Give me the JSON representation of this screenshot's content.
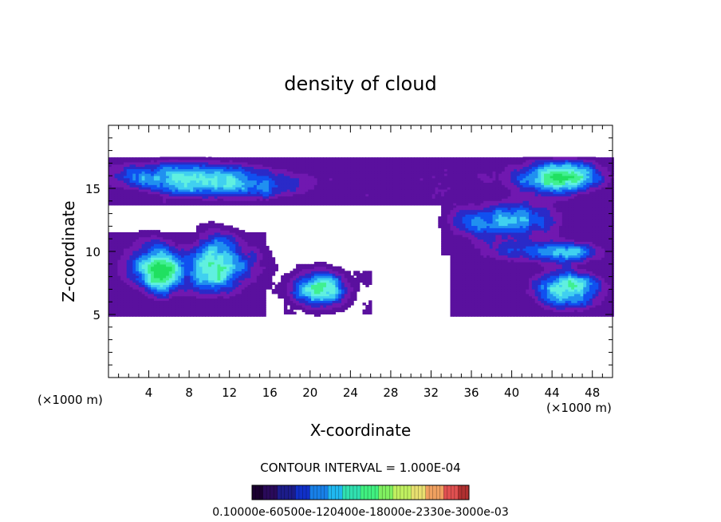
{
  "chart_data": {
    "type": "heatmap",
    "title": "density of cloud",
    "xlabel": "X-coordinate",
    "ylabel": "Z-coordinate",
    "x_unit": "(×1000 m)",
    "x_unit_right": "(×1000 m)",
    "xlim": [
      0,
      50
    ],
    "ylim": [
      0,
      20
    ],
    "x_ticks": [
      4,
      8,
      12,
      16,
      20,
      24,
      28,
      32,
      36,
      40,
      44,
      48
    ],
    "y_ticks": [
      5,
      10,
      15
    ],
    "contour_interval_text": "CONTOUR INTERVAL = 1.000E-04",
    "colorbar": {
      "labels_text": "0.10000e-60500e-120400e-18000e-2330e-3000e-03",
      "colors": [
        "#1a0030",
        "#2a0a5a",
        "#1c1c8a",
        "#1030c8",
        "#1880e8",
        "#20b8f0",
        "#30e0b0",
        "#40f080",
        "#80f060",
        "#c0f060",
        "#e8e070",
        "#f0a060",
        "#e05050",
        "#b03030"
      ]
    },
    "blobs": [
      {
        "x": 7.0,
        "z": 16.0,
        "rx": 8.0,
        "rz": 1.3,
        "a": 0.6
      },
      {
        "x": 13.0,
        "z": 15.0,
        "rx": 6.5,
        "rz": 1.0,
        "a": 0.45
      },
      {
        "x": 23.0,
        "z": 16.0,
        "rx": 12.0,
        "rz": 1.0,
        "a": 0.14
      },
      {
        "x": 37.0,
        "z": 16.0,
        "rx": 8.0,
        "rz": 1.2,
        "a": 0.16
      },
      {
        "x": 45.0,
        "z": 16.0,
        "rx": 4.0,
        "rz": 1.4,
        "a": 0.85
      },
      {
        "x": 41.0,
        "z": 12.5,
        "rx": 4.0,
        "rz": 1.6,
        "a": 0.55
      },
      {
        "x": 36.0,
        "z": 12.5,
        "rx": 3.0,
        "rz": 1.5,
        "a": 0.35
      },
      {
        "x": 46.0,
        "z": 10.0,
        "rx": 3.5,
        "rz": 0.9,
        "a": 0.5
      },
      {
        "x": 40.0,
        "z": 10.0,
        "rx": 4.0,
        "rz": 1.0,
        "a": 0.35
      },
      {
        "x": 5.5,
        "z": 8.5,
        "rx": 2.3,
        "rz": 2.0,
        "a": 0.8
      },
      {
        "x": 10.5,
        "z": 9.0,
        "rx": 2.3,
        "rz": 2.4,
        "a": 0.85
      },
      {
        "x": 3.0,
        "z": 9.0,
        "rx": 3.0,
        "rz": 2.3,
        "a": 0.3
      },
      {
        "x": 14.0,
        "z": 9.0,
        "rx": 2.5,
        "rz": 2.2,
        "a": 0.3
      },
      {
        "x": 21.0,
        "z": 7.0,
        "rx": 2.8,
        "rz": 1.5,
        "a": 0.85
      },
      {
        "x": 45.5,
        "z": 7.0,
        "rx": 3.5,
        "rz": 1.5,
        "a": 0.85
      }
    ]
  }
}
